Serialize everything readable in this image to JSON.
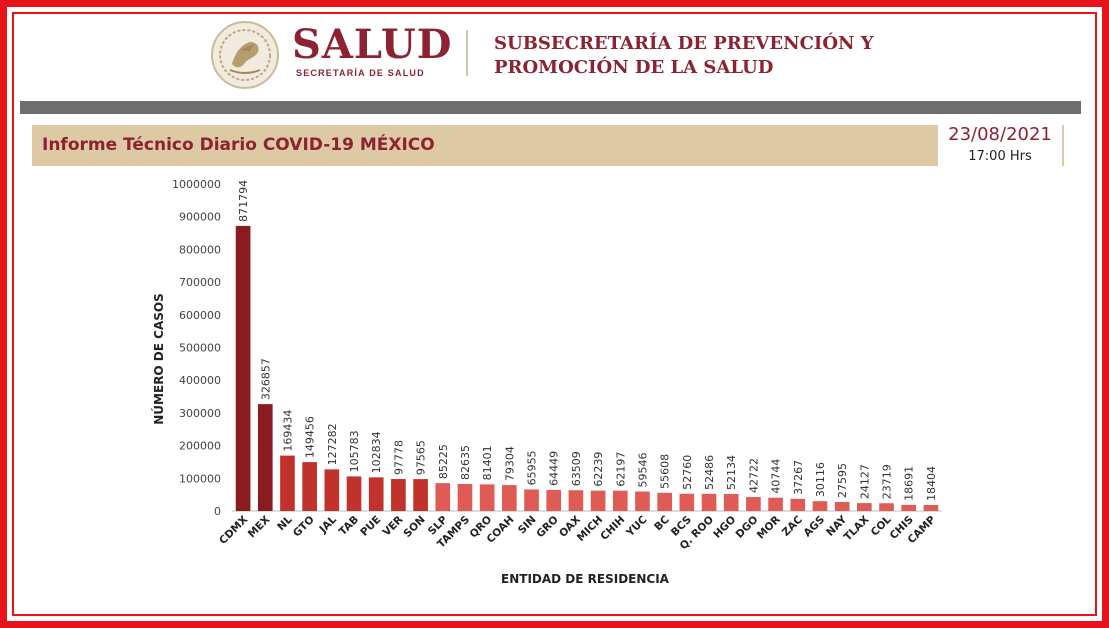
{
  "header": {
    "agency_title": "SALUD",
    "agency_subtitle": "SECRETARÍA DE SALUD",
    "subsecretaria_line1": "SUBSECRETARÍA DE PREVENCIÓN Y",
    "subsecretaria_line2": "PROMOCIÓN DE LA SALUD"
  },
  "report": {
    "title": "Informe Técnico Diario COVID-19 MÉXICO",
    "date": "23/08/2021",
    "time": "17:00 Hrs"
  },
  "colors": {
    "frame": "#e8121a",
    "brand": "#8c2232",
    "band": "#ddc9a4",
    "bar_dark": "#8a1c1f",
    "bar_mid": "#c0322b",
    "bar_light": "#df5b55"
  },
  "chart_data": {
    "type": "bar",
    "title": "",
    "xlabel": "ENTIDAD DE RESIDENCIA",
    "ylabel": "NÚMERO DE CASOS",
    "ylim": [
      0,
      1000000
    ],
    "yticks": [
      0,
      100000,
      200000,
      300000,
      400000,
      500000,
      600000,
      700000,
      800000,
      900000,
      1000000
    ],
    "ytick_labels": [
      "0",
      "100000",
      "200000",
      "300000",
      "400000",
      "500000",
      "600000",
      "700000",
      "800000",
      "900000",
      "1000000"
    ],
    "categories": [
      "CDMX",
      "MEX",
      "NL",
      "GTO",
      "JAL",
      "TAB",
      "PUE",
      "VER",
      "SON",
      "SLP",
      "TAMPS",
      "QRO",
      "COAH",
      "SIN",
      "GRO",
      "OAX",
      "MICH",
      "CHIH",
      "YUC",
      "BC",
      "BCS",
      "Q. ROO",
      "HGO",
      "DGO",
      "MOR",
      "ZAC",
      "AGS",
      "NAY",
      "TLAX",
      "COL",
      "CHIS",
      "CAMP"
    ],
    "values": [
      871794,
      326857,
      169434,
      149456,
      127282,
      105783,
      102834,
      97778,
      97565,
      85225,
      82635,
      81401,
      79304,
      65955,
      64449,
      63509,
      62239,
      62197,
      59546,
      55608,
      52760,
      52486,
      52134,
      42722,
      40744,
      37267,
      30116,
      27595,
      24127,
      23719,
      18691,
      18404
    ],
    "value_labels": [
      "871794",
      "326857",
      "169434",
      "149456",
      "127282",
      "105783",
      "102834",
      "97778",
      "97565",
      "85225",
      "82635",
      "81401",
      "79304",
      "65955",
      "64449",
      "63509",
      "62239",
      "62197",
      "59546",
      "55608",
      "52760",
      "52486",
      "52134",
      "42722",
      "40744",
      "37267",
      "30116",
      "27595",
      "24127",
      "23719",
      "18691",
      "18404"
    ],
    "bar_shade": [
      "dark",
      "dark",
      "mid",
      "mid",
      "mid",
      "mid",
      "mid",
      "mid",
      "mid",
      "light",
      "light",
      "light",
      "light",
      "light",
      "light",
      "light",
      "light",
      "light",
      "light",
      "light",
      "light",
      "light",
      "light",
      "light",
      "light",
      "light",
      "light",
      "light",
      "light",
      "light",
      "light",
      "light"
    ],
    "grid": false,
    "legend": "none"
  }
}
